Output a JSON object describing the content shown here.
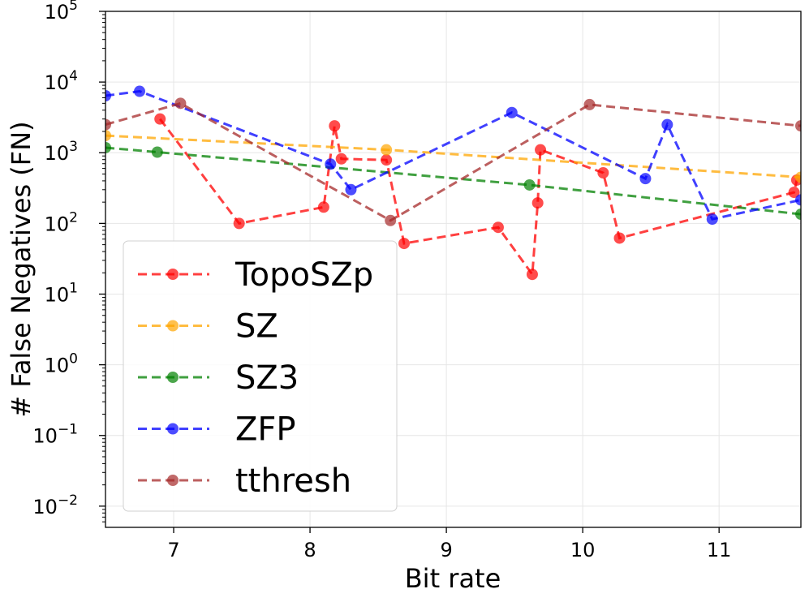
{
  "chart_data": {
    "type": "line",
    "title": "",
    "xlabel": "Bit rate",
    "ylabel": "# False Negatives (FN)",
    "xlim": [
      6.5,
      11.6
    ],
    "ylog": true,
    "ylim_exp": [
      -2.3,
      5
    ],
    "grid": true,
    "legend_position": "lower-left",
    "x_ticks": [
      {
        "value": 7,
        "label": "7"
      },
      {
        "value": 8,
        "label": "8"
      },
      {
        "value": 9,
        "label": "9"
      },
      {
        "value": 10,
        "label": "10"
      },
      {
        "value": 11,
        "label": "11"
      }
    ],
    "y_ticks": [
      {
        "exp": -2,
        "base": "10",
        "sup": "−2"
      },
      {
        "exp": -1,
        "base": "10",
        "sup": "−1"
      },
      {
        "exp": 0,
        "base": "10",
        "sup": "0"
      },
      {
        "exp": 1,
        "base": "10",
        "sup": "1"
      },
      {
        "exp": 2,
        "base": "10",
        "sup": "2"
      },
      {
        "exp": 3,
        "base": "10",
        "sup": "3"
      },
      {
        "exp": 4,
        "base": "10",
        "sup": "4"
      },
      {
        "exp": 5,
        "base": "10",
        "sup": "5"
      }
    ],
    "series": [
      {
        "name": "TopoSZp",
        "color": "#ff0000",
        "x": [
          6.9,
          7.48,
          8.1,
          8.18,
          8.23,
          8.56,
          8.69,
          9.38,
          9.63,
          9.67,
          9.69,
          10.15,
          10.27,
          11.55,
          11.57
        ],
        "y": [
          3000,
          100,
          170,
          2400,
          820,
          790,
          52,
          88,
          19,
          195,
          1100,
          520,
          62,
          275,
          410
        ]
      },
      {
        "name": "SZ",
        "color": "#ffa500",
        "x": [
          6.5,
          8.56,
          11.6
        ],
        "y": [
          1750,
          1100,
          450
        ]
      },
      {
        "name": "SZ3",
        "color": "#008000",
        "x": [
          6.5,
          6.88,
          9.61,
          11.6
        ],
        "y": [
          1180,
          1020,
          350,
          135
        ]
      },
      {
        "name": "ZFP",
        "color": "#0000ff",
        "x": [
          6.5,
          6.75,
          8.15,
          8.3,
          9.48,
          10.46,
          10.62,
          10.95,
          11.6
        ],
        "y": [
          6400,
          7400,
          690,
          300,
          3700,
          430,
          2500,
          115,
          215
        ]
      },
      {
        "name": "tthresh",
        "color": "#a52a2a",
        "x": [
          6.5,
          7.05,
          8.59,
          10.05,
          11.6
        ],
        "y": [
          2500,
          5000,
          110,
          4800,
          2400
        ]
      }
    ]
  }
}
